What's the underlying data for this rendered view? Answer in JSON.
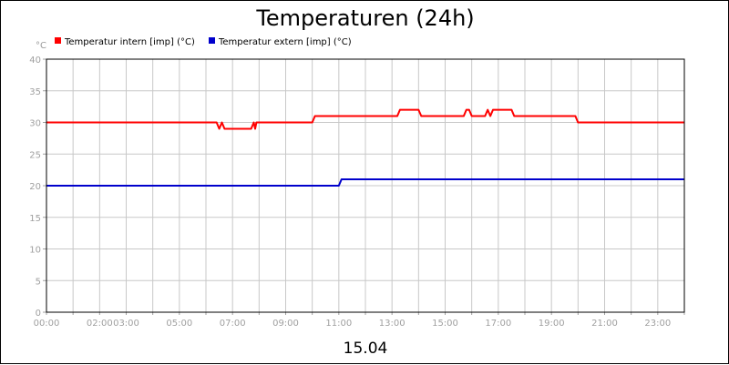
{
  "chart_data": {
    "type": "line",
    "title": "Temperaturen (24h)",
    "y_unit": "°C",
    "date_label": "15.04",
    "ylim": [
      0,
      40
    ],
    "y_ticks": [
      0,
      5,
      10,
      15,
      20,
      25,
      30,
      35,
      40
    ],
    "xlim": [
      0,
      24
    ],
    "x_tick_labels": [
      "00:00",
      "02:00",
      "03:00",
      "05:00",
      "07:00",
      "09:00",
      "11:00",
      "13:00",
      "15:00",
      "17:00",
      "19:00",
      "21:00",
      "23:00"
    ],
    "x_tick_hours": [
      0,
      2,
      3,
      5,
      7,
      9,
      11,
      13,
      15,
      17,
      19,
      21,
      23
    ],
    "grid": true,
    "legend_position": "top-left",
    "series": [
      {
        "name": "Temperatur intern [imp] (°C)",
        "color": "#ff0000",
        "x": [
          0,
          6.4,
          6.5,
          6.6,
          6.7,
          6.8,
          7.7,
          7.8,
          7.85,
          7.9,
          10.0,
          10.1,
          13.2,
          13.3,
          14.0,
          14.1,
          15.7,
          15.8,
          15.9,
          16.0,
          16.5,
          16.6,
          16.7,
          16.8,
          16.85,
          17.5,
          17.6,
          19.9,
          20.0,
          24
        ],
        "y": [
          30,
          30,
          29,
          30,
          29,
          29,
          29,
          30,
          29,
          30,
          30,
          31,
          31,
          32,
          32,
          31,
          31,
          32,
          32,
          31,
          31,
          32,
          31,
          32,
          32,
          32,
          31,
          31,
          30,
          30
        ]
      },
      {
        "name": "Temperatur extern [imp] (°C)",
        "color": "#0000cc",
        "x": [
          0,
          11.0,
          11.1,
          24
        ],
        "y": [
          20,
          20,
          21,
          21
        ]
      }
    ]
  }
}
